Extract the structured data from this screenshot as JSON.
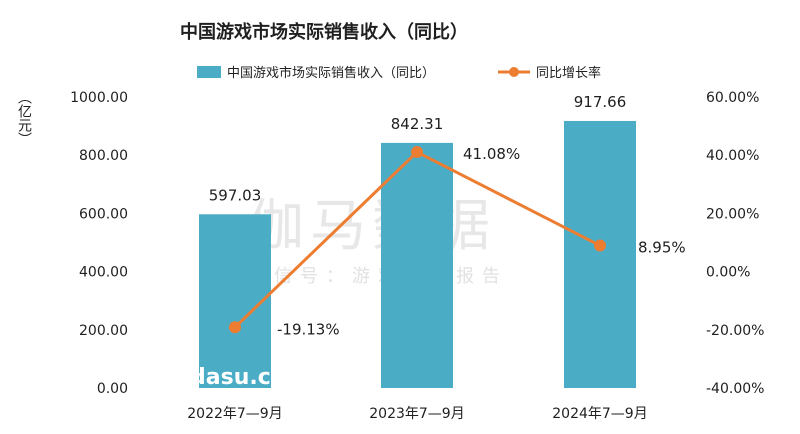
{
  "chart_data": {
    "type": "bar+line",
    "title": "中国游戏市场实际销售收入（同比）",
    "categories": [
      "2022年7—9月",
      "2023年7—9月",
      "2024年7—9月"
    ],
    "series": [
      {
        "name": "中国游戏市场实际销售收入（同比）",
        "type": "bar",
        "axis": "left",
        "values": [
          597.03,
          842.31,
          917.66
        ],
        "labels": [
          "597.03",
          "842.31",
          "917.66"
        ],
        "color": "#4bacc6"
      },
      {
        "name": "同比增长率",
        "type": "line",
        "axis": "right",
        "values": [
          -19.13,
          41.08,
          8.95
        ],
        "labels": [
          "-19.13%",
          "41.08%",
          "8.95%"
        ],
        "color": "#ed7d31"
      }
    ],
    "ylabel": "（亿元）",
    "ylim": [
      0,
      1000
    ],
    "y_ticks": [
      "1000.00",
      "800.00",
      "600.00",
      "400.00",
      "200.00",
      "0.00"
    ],
    "y2lim": [
      -40,
      60
    ],
    "y2_ticks": [
      "60.00%",
      "40.00%",
      "20.00%",
      "0.00%",
      "-20.00%",
      "-40.00%"
    ],
    "grid": false,
    "legend": "top"
  },
  "watermark": {
    "main": "伽马数据",
    "sub": "微信号：游戏产业报告",
    "site": "dasu.cn"
  }
}
